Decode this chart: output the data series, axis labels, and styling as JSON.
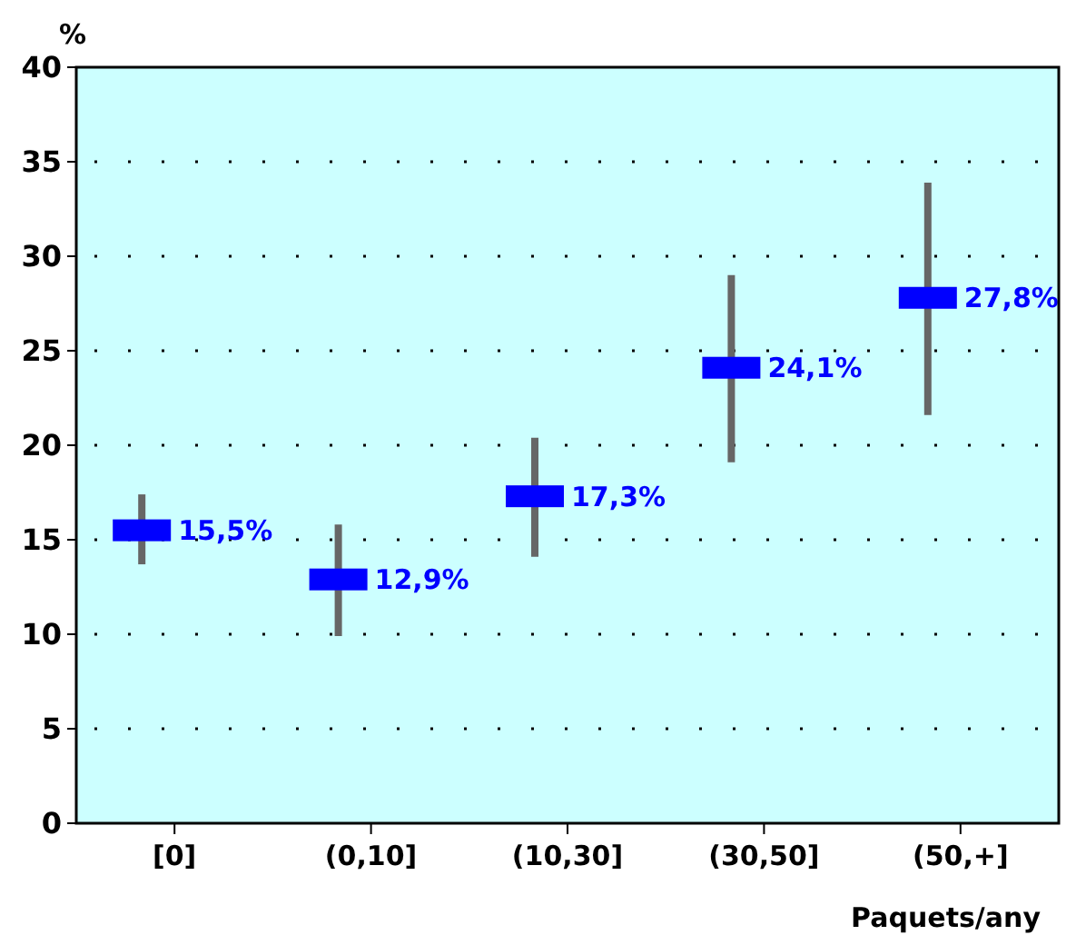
{
  "chart_data": {
    "type": "scatter",
    "ylabel": "%",
    "xlabel": "Paquets/any",
    "categories": [
      "[0]",
      "(0,10]",
      "(10,30]",
      "(30,50]",
      "(50,+]"
    ],
    "values": [
      15.5,
      12.9,
      17.3,
      24.1,
      27.8
    ],
    "errors": [
      [
        13.7,
        17.4
      ],
      [
        9.9,
        15.8
      ],
      [
        14.1,
        20.4
      ],
      [
        19.1,
        29.0
      ],
      [
        21.6,
        33.9
      ]
    ],
    "value_labels": [
      "15,5%",
      "12,9%",
      "17,3%",
      "24,1%",
      "27,8%"
    ],
    "color": "#0000ff",
    "ylim": [
      0,
      40
    ],
    "yticks": [
      0,
      5,
      10,
      15,
      20,
      25,
      30,
      35,
      40
    ],
    "grid": "y",
    "marker": "square"
  }
}
